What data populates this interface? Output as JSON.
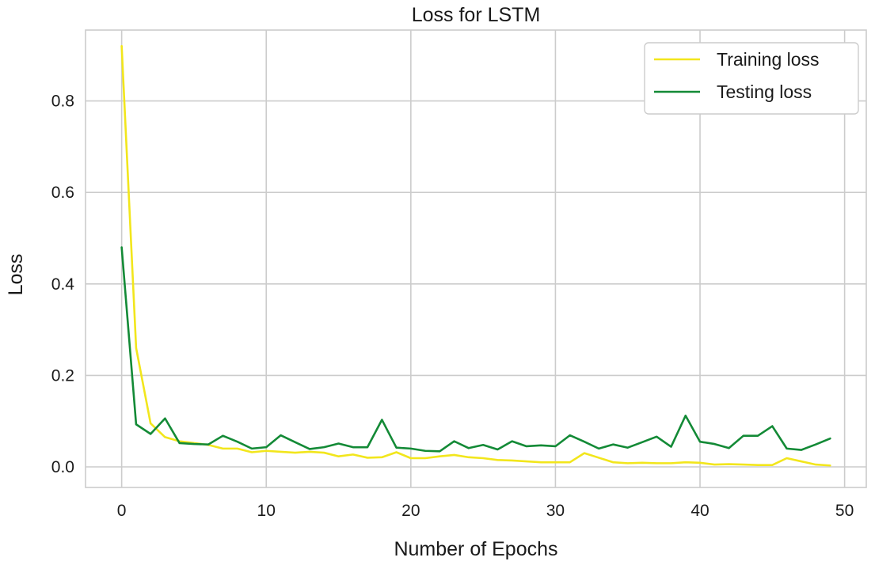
{
  "chart_data": {
    "type": "line",
    "title": "Loss for LSTM",
    "xlabel": "Number of Epochs",
    "ylabel": "Loss",
    "xlim": [
      -2.5,
      51.5
    ],
    "ylim": [
      -0.045,
      0.955
    ],
    "xticks": [
      0,
      10,
      20,
      30,
      40,
      50
    ],
    "yticks": [
      0.0,
      0.2,
      0.4,
      0.6,
      0.8
    ],
    "ytick_labels": [
      "0.0",
      "0.2",
      "0.4",
      "0.6",
      "0.8"
    ],
    "grid": true,
    "legend_position": "top-right",
    "x": [
      0,
      1,
      2,
      3,
      4,
      5,
      6,
      7,
      8,
      9,
      10,
      11,
      12,
      13,
      14,
      15,
      16,
      17,
      18,
      19,
      20,
      21,
      22,
      23,
      24,
      25,
      26,
      27,
      28,
      29,
      30,
      31,
      32,
      33,
      34,
      35,
      36,
      37,
      38,
      39,
      40,
      41,
      42,
      43,
      44,
      45,
      46,
      47,
      48,
      49
    ],
    "series": [
      {
        "name": "Training loss",
        "color": "#f2e61c",
        "values": [
          0.92,
          0.26,
          0.095,
          0.065,
          0.056,
          0.052,
          0.048,
          0.04,
          0.04,
          0.032,
          0.035,
          0.033,
          0.031,
          0.033,
          0.031,
          0.023,
          0.027,
          0.02,
          0.021,
          0.032,
          0.019,
          0.019,
          0.023,
          0.026,
          0.021,
          0.019,
          0.015,
          0.014,
          0.012,
          0.01,
          0.01,
          0.01,
          0.03,
          0.02,
          0.01,
          0.008,
          0.009,
          0.008,
          0.008,
          0.01,
          0.009,
          0.005,
          0.006,
          0.005,
          0.004,
          0.004,
          0.019,
          0.012,
          0.005,
          0.003
        ]
      },
      {
        "name": "Testing loss",
        "color": "#138a36",
        "values": [
          0.48,
          0.093,
          0.072,
          0.106,
          0.052,
          0.05,
          0.049,
          0.068,
          0.055,
          0.04,
          0.043,
          0.069,
          0.054,
          0.039,
          0.043,
          0.051,
          0.043,
          0.043,
          0.103,
          0.042,
          0.04,
          0.035,
          0.034,
          0.056,
          0.041,
          0.048,
          0.038,
          0.056,
          0.045,
          0.047,
          0.045,
          0.069,
          0.055,
          0.04,
          0.049,
          0.042,
          0.054,
          0.066,
          0.044,
          0.112,
          0.055,
          0.05,
          0.041,
          0.068,
          0.068,
          0.089,
          0.04,
          0.037,
          0.049,
          0.062
        ]
      }
    ]
  }
}
